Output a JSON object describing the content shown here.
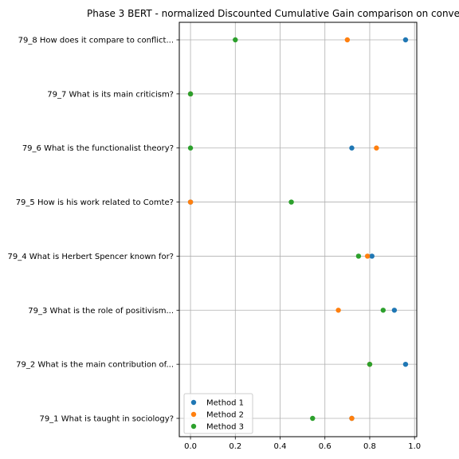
{
  "chart_data": {
    "type": "scatter",
    "title": "Phase 3 BERT - normalized Discounted Cumulative Gain comparison on conve",
    "xlabel": "",
    "ylabel": "",
    "xlim": [
      -0.05,
      1.01
    ],
    "xticks": [
      "0.0",
      "0.2",
      "0.4",
      "0.6",
      "0.8",
      "1.0"
    ],
    "grid": true,
    "legend_placement": "lower-left",
    "categories": [
      "79_1 What is taught in sociology?",
      "79_2 What is the main contribution of...",
      "79_3 What is the role of positivism...",
      "79_4 What is Herbert Spencer known for?",
      "79_5 How is his work related to Comte?",
      "79_6 What is the functionalist theory?",
      "79_7 What is its main criticism?",
      "79_8 How does it compare to conflict..."
    ],
    "series": [
      {
        "name": "Method 1",
        "color": "#1f77b4",
        "values": [
          0.72,
          0.96,
          0.91,
          0.81,
          0.0,
          0.72,
          0.0,
          0.96
        ]
      },
      {
        "name": "Method 2",
        "color": "#ff7f0e",
        "values": [
          0.72,
          0.8,
          0.66,
          0.79,
          0.0,
          0.83,
          0.0,
          0.7
        ]
      },
      {
        "name": "Method 3",
        "color": "#2ca02c",
        "values": [
          0.545,
          0.8,
          0.86,
          0.75,
          0.45,
          0.0,
          0.0,
          0.2
        ]
      }
    ]
  }
}
